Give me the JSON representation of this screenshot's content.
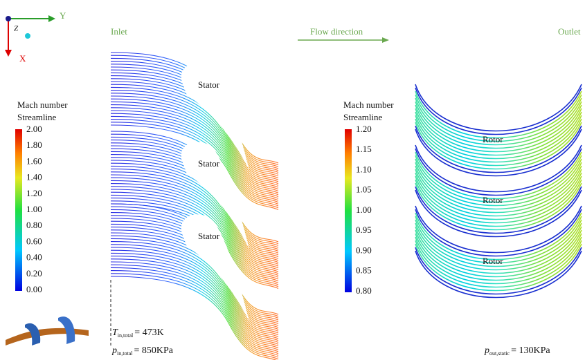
{
  "axes": {
    "y": "Y",
    "z": "Z",
    "x": "X"
  },
  "header": {
    "inlet": "Inlet",
    "flow_direction": "Flow direction",
    "outlet": "Outlet"
  },
  "stator_legend": {
    "title": "Mach number",
    "subtitle": "Streamline",
    "labels": [
      "2.00",
      "1.80",
      "1.60",
      "1.40",
      "1.20",
      "1.00",
      "0.80",
      "0.60",
      "0.40",
      "0.20",
      "0.00"
    ]
  },
  "rotor_legend": {
    "title": "Mach number",
    "subtitle": "Streamline",
    "labels": [
      "1.20",
      "1.15",
      "1.10",
      "1.05",
      "1.00",
      "0.95",
      "0.90",
      "0.85",
      "0.80"
    ]
  },
  "stator_labels": [
    "Stator",
    "Stator",
    "Stator"
  ],
  "rotor_labels": [
    "Rotor",
    "Rotor",
    "Rotor"
  ],
  "conditions": [
    {
      "symbol": "T",
      "subscript": "in,total",
      "value": "= 473K"
    },
    {
      "symbol": "p",
      "subscript": "in,total",
      "value": "= 850KPa"
    },
    {
      "symbol": "p",
      "subscript": "out,static",
      "value": "= 130KPa"
    }
  ]
}
